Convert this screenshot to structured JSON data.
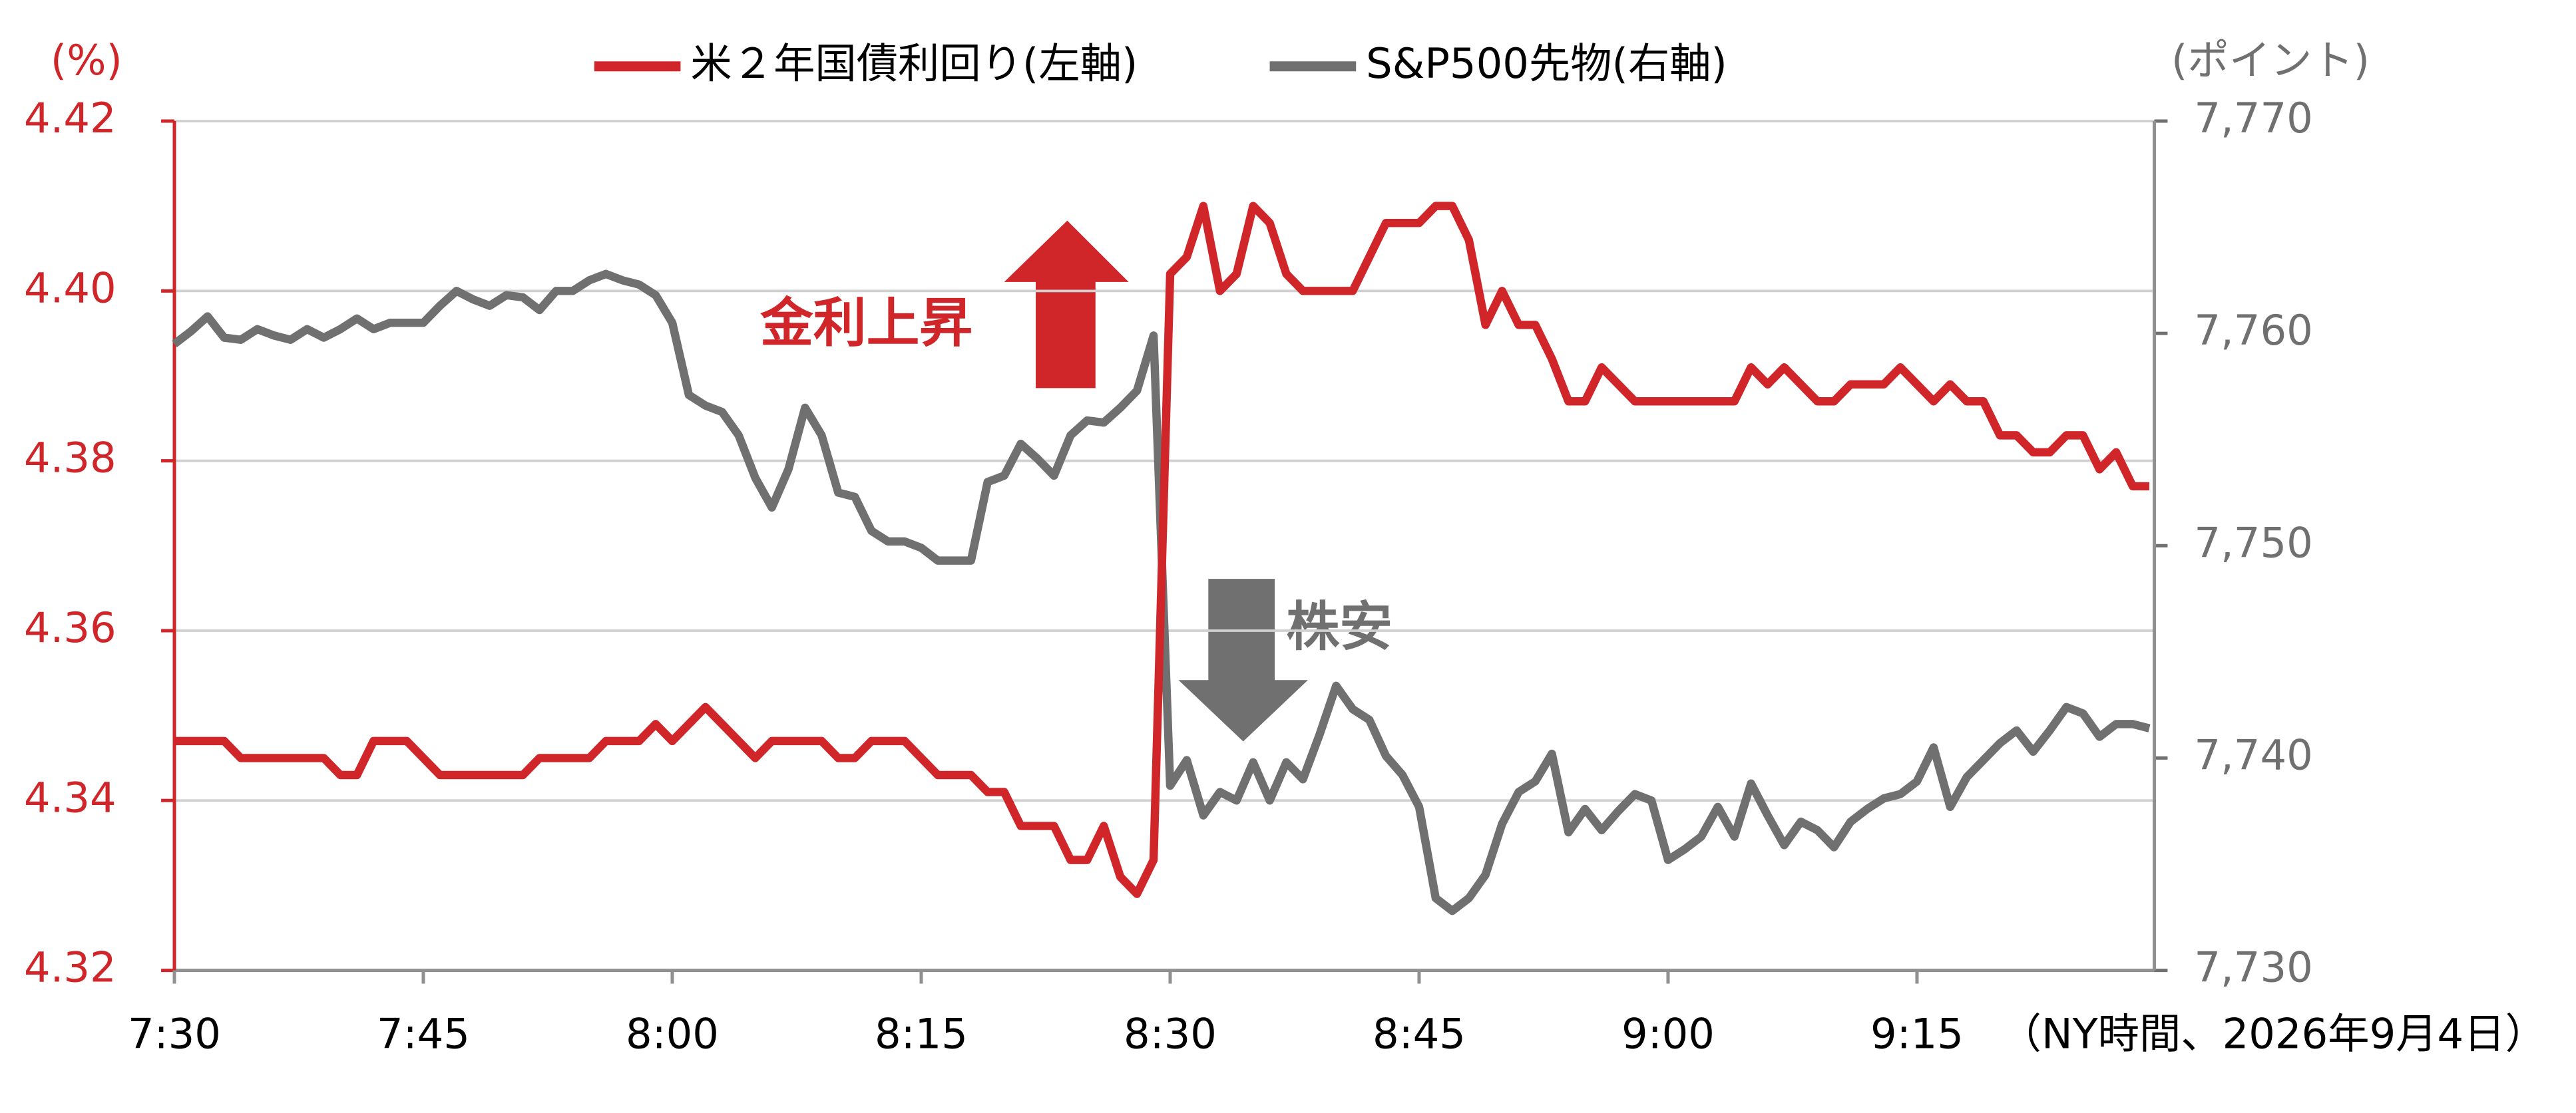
{
  "chart_data": {
    "type": "line",
    "left_axis_label": "(%)",
    "right_axis_label": "(ポイント)",
    "note": "（NY時間、2026年9月4日）",
    "annotations": [
      "金利上昇",
      "株安"
    ],
    "categories": [
      "7:30",
      null,
      null,
      null,
      null,
      null,
      null,
      null,
      null,
      null,
      null,
      null,
      null,
      null,
      null,
      "7:45",
      null,
      null,
      null,
      null,
      null,
      null,
      null,
      null,
      null,
      null,
      null,
      null,
      null,
      null,
      "8:00",
      null,
      null,
      null,
      null,
      null,
      null,
      null,
      null,
      null,
      null,
      null,
      null,
      null,
      null,
      "8:15",
      null,
      null,
      null,
      null,
      null,
      null,
      null,
      null,
      null,
      null,
      null,
      null,
      null,
      null,
      "8:30",
      null,
      null,
      null,
      null,
      null,
      null,
      null,
      null,
      null,
      null,
      null,
      null,
      null,
      null,
      "8:45",
      null,
      null,
      null,
      null,
      null,
      null,
      null,
      null,
      null,
      null,
      null,
      null,
      null,
      null,
      "9:00",
      null,
      null,
      null,
      null,
      null,
      null,
      null,
      null,
      null,
      null,
      null,
      null,
      null,
      null,
      "9:15",
      null,
      null,
      null,
      null,
      null,
      null,
      null,
      null,
      null,
      null,
      null,
      null,
      null,
      null
    ],
    "ylim": [
      4.32,
      4.42
    ],
    "yticks": [
      4.32,
      4.34,
      4.36,
      4.38,
      {
        "value": 4.4,
        "label": "4.40"
      },
      4.42
    ],
    "y2lim": [
      7730,
      7770
    ],
    "y2ticks": [
      {
        "value": 7730,
        "label": "7,730"
      },
      {
        "value": 7740,
        "label": "7,740"
      },
      {
        "value": 7750,
        "label": "7,750"
      },
      {
        "value": 7760,
        "label": "7,760"
      },
      {
        "value": 7770,
        "label": "7,770"
      }
    ],
    "grid": true,
    "series": [
      {
        "name": "米２年国債利回り(左軸)",
        "color": "#d0262a",
        "axis": "y",
        "values": [
          4.347,
          4.347,
          4.347,
          4.347,
          4.345,
          4.345,
          4.345,
          4.345,
          4.345,
          4.345,
          4.343,
          4.343,
          4.347,
          4.347,
          4.347,
          4.345,
          4.343,
          4.343,
          4.343,
          4.343,
          4.343,
          4.343,
          4.345,
          4.345,
          4.345,
          4.345,
          4.347,
          4.347,
          4.347,
          4.349,
          4.347,
          4.349,
          4.351,
          4.349,
          4.347,
          4.345,
          4.347,
          4.347,
          4.347,
          4.347,
          4.345,
          4.345,
          4.347,
          4.347,
          4.347,
          4.345,
          4.343,
          4.343,
          4.343,
          4.341,
          4.341,
          4.337,
          4.337,
          4.337,
          4.333,
          4.333,
          4.337,
          4.331,
          4.329,
          4.333,
          4.402,
          4.404,
          4.41,
          4.4,
          4.402,
          4.41,
          4.408,
          4.402,
          4.4,
          4.4,
          4.4,
          4.4,
          4.404,
          4.408,
          4.408,
          4.408,
          4.41,
          4.41,
          4.406,
          4.396,
          4.4,
          4.396,
          4.396,
          4.392,
          4.387,
          4.387,
          4.391,
          4.389,
          4.387,
          4.387,
          4.387,
          4.387,
          4.387,
          4.387,
          4.387,
          4.391,
          4.389,
          4.391,
          4.389,
          4.387,
          4.387,
          4.389,
          4.389,
          4.389,
          4.391,
          4.389,
          4.387,
          4.389,
          4.387,
          4.387,
          4.383,
          4.383,
          4.381,
          4.381,
          4.383,
          4.383,
          4.379,
          4.381,
          4.377,
          4.377
        ]
      },
      {
        "name": "S&P500先物(右軸)",
        "color": "#707070",
        "axis": "y2",
        "values": [
          7759.5,
          7760.1,
          7760.8,
          7759.8,
          7759.7,
          7760.2,
          7759.9,
          7759.7,
          7760.2,
          7759.8,
          7760.2,
          7760.7,
          7760.2,
          7760.5,
          7760.5,
          7760.5,
          7761.3,
          7762,
          7761.6,
          7761.3,
          7761.8,
          7761.7,
          7761.1,
          7762,
          7762,
          7762.5,
          7762.8,
          7762.5,
          7762.3,
          7761.8,
          7760.5,
          7757.1,
          7756.6,
          7756.3,
          7755.2,
          7753.2,
          7751.8,
          7753.6,
          7756.5,
          7755.2,
          7752.5,
          7752.3,
          7750.7,
          7750.2,
          7750.2,
          7749.9,
          7749.3,
          7749.3,
          7749.3,
          7753,
          7753.3,
          7754.8,
          7754.1,
          7753.3,
          7755.2,
          7755.9,
          7755.8,
          7756.5,
          7757.3,
          7759.9,
          7738.7,
          7739.9,
          7737.3,
          7738.4,
          7738,
          7739.8,
          7738,
          7739.8,
          7739,
          7741.1,
          7743.4,
          7742.3,
          7741.8,
          7740.1,
          7739.2,
          7737.7,
          7733.4,
          7732.8,
          7733.4,
          7734.5,
          7736.9,
          7738.4,
          7738.9,
          7740.2,
          7736.5,
          7737.6,
          7736.6,
          7737.5,
          7738.3,
          7738,
          7735.2,
          7735.7,
          7736.3,
          7737.7,
          7736.3,
          7738.8,
          7737.3,
          7735.9,
          7737,
          7736.6,
          7735.8,
          7737,
          7737.6,
          7738.1,
          7738.3,
          7738.9,
          7740.5,
          7737.7,
          7739.1,
          7739.9,
          7740.7,
          7741.3,
          7740.3,
          7741.3,
          7742.4,
          7742.1,
          7741,
          7741.6,
          7741.6,
          7741.4
        ]
      }
    ]
  }
}
